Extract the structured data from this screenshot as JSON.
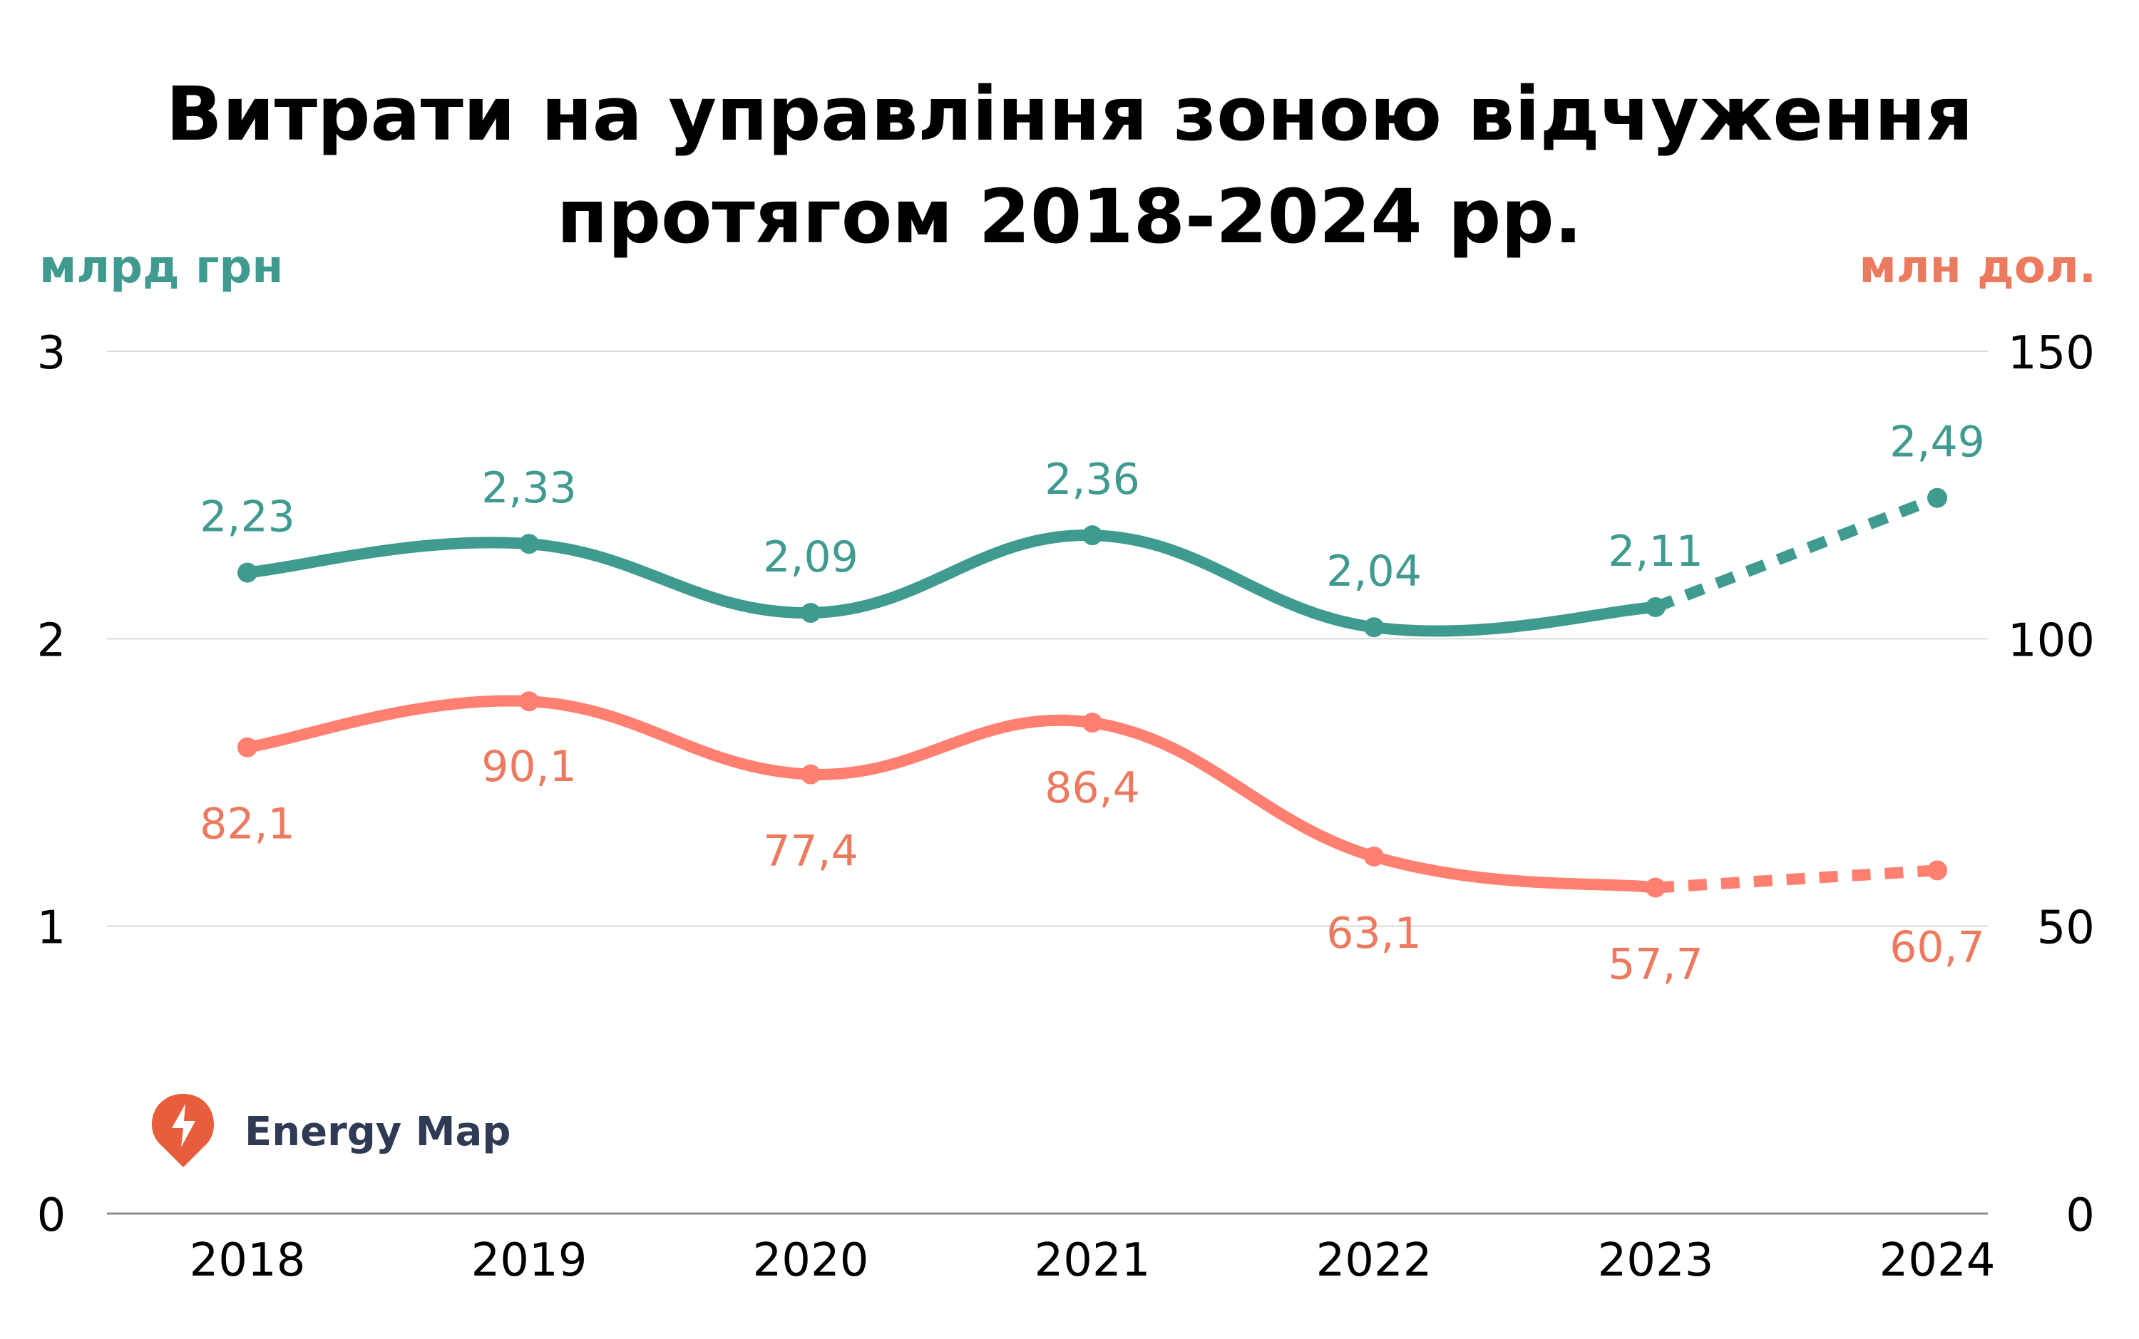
{
  "chart_data": {
    "type": "line",
    "title_lines": [
      "Витрати на управління зоною відчуження",
      "протягом 2018-2024 рр."
    ],
    "left_axis": {
      "label": "млрд грн",
      "ticks": [
        "0",
        "1",
        "2",
        "3"
      ],
      "range": [
        0,
        3
      ]
    },
    "right_axis": {
      "label": "млн дол.",
      "ticks": [
        "0",
        "50",
        "100",
        "150"
      ],
      "range": [
        0,
        150
      ]
    },
    "categories": [
      "2018",
      "2019",
      "2020",
      "2021",
      "2022",
      "2023",
      "2024"
    ],
    "grid": true,
    "series": [
      {
        "name": "млрд грн",
        "axis": "left",
        "values": [
          2.23,
          2.33,
          2.09,
          2.36,
          2.04,
          2.11,
          2.49
        ],
        "labels": [
          "2,23",
          "2,33",
          "2,09",
          "2,36",
          "2,04",
          "2,11",
          "2,49"
        ],
        "dashed_from_index": 5,
        "color": "#3f9a8f"
      },
      {
        "name": "млн дол.",
        "axis": "right",
        "values": [
          82.1,
          90.1,
          77.4,
          86.4,
          63.1,
          57.7,
          60.7
        ],
        "labels": [
          "82,1",
          "90,1",
          "77,4",
          "86,4",
          "63,1",
          "57,7",
          "60,7"
        ],
        "dashed_from_index": 5,
        "color": "#ff8070",
        "label_color": "#ec7a5e"
      }
    ]
  },
  "colors": {
    "left_unit": "#3f9a8f",
    "right_unit": "#ec7a5e",
    "grid": "#d9d9d9",
    "baseline": "#8c8c8c",
    "logo": "#e85d3c",
    "brand_text": "#2f3a54"
  },
  "brand": {
    "name": "Energy Map",
    "icon": "lightning-pin-icon"
  }
}
